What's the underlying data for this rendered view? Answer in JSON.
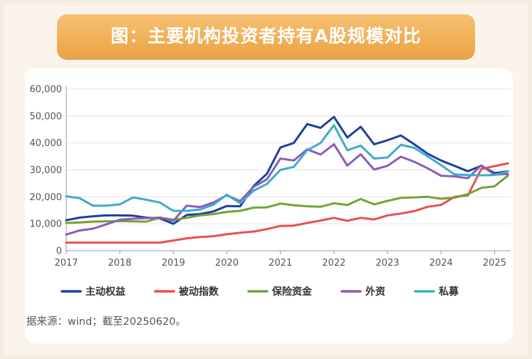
{
  "title": "图：主要机构投资者持有A股规模对比",
  "source": "据来源：wind；截至20250620。",
  "chart_data": {
    "type": "line",
    "ylim": [
      0,
      60000
    ],
    "xlim": [
      2017,
      2025.3
    ],
    "yticks": [
      "0",
      "10,000",
      "20,000",
      "30,000",
      "40,000",
      "50,000",
      "60,000"
    ],
    "xticks": [
      "2017",
      "2018",
      "2019",
      "2020",
      "2021",
      "2022",
      "2023",
      "2024",
      "2025"
    ],
    "grid": "horizontal",
    "legend_position": "bottom",
    "x": [
      2017.0,
      2017.25,
      2017.5,
      2017.75,
      2018.0,
      2018.25,
      2018.5,
      2018.75,
      2019.0,
      2019.25,
      2019.5,
      2019.75,
      2020.0,
      2020.25,
      2020.5,
      2020.75,
      2021.0,
      2021.25,
      2021.5,
      2021.75,
      2022.0,
      2022.25,
      2022.5,
      2022.75,
      2023.0,
      2023.25,
      2023.5,
      2023.75,
      2024.0,
      2024.25,
      2024.5,
      2024.75,
      2025.0,
      2025.25
    ],
    "series": [
      {
        "name": "主动权益",
        "color": "#1f3f9a",
        "values": [
          11300,
          12300,
          12800,
          13100,
          13100,
          13000,
          12300,
          12000,
          10000,
          13300,
          13600,
          14600,
          16600,
          16500,
          24000,
          28600,
          38300,
          40000,
          47000,
          45600,
          49700,
          42000,
          46000,
          39500,
          41000,
          42800,
          39500,
          36000,
          33500,
          31500,
          29500,
          31500,
          28800,
          29400
        ]
      },
      {
        "name": "被动指数",
        "color": "#e7504f",
        "values": [
          3000,
          3000,
          3000,
          3000,
          3000,
          3000,
          3000,
          3000,
          3800,
          4600,
          5100,
          5400,
          6100,
          6700,
          7100,
          8000,
          9200,
          9300,
          10300,
          11200,
          12200,
          11100,
          12200,
          11600,
          13100,
          13800,
          14700,
          16300,
          17000,
          20000,
          20500,
          30300,
          31400,
          32400
        ]
      },
      {
        "name": "保险资金",
        "color": "#73a335",
        "values": [
          10300,
          10500,
          10800,
          10900,
          11000,
          10900,
          10800,
          12300,
          11500,
          12200,
          13100,
          13600,
          14400,
          14800,
          16000,
          16100,
          17500,
          16900,
          16500,
          16300,
          17600,
          17000,
          19200,
          17200,
          18500,
          19600,
          19800,
          20000,
          19300,
          19700,
          21000,
          23300,
          23900,
          27900
        ]
      },
      {
        "name": "外资",
        "color": "#8a5db8",
        "values": [
          6000,
          7500,
          8200,
          9800,
          11500,
          11900,
          12100,
          12300,
          11100,
          16700,
          16200,
          17900,
          20600,
          18400,
          23700,
          26500,
          34200,
          33500,
          37600,
          35700,
          39500,
          31600,
          35800,
          30100,
          31500,
          34900,
          33000,
          30600,
          27800,
          27600,
          26900,
          31700,
          28200,
          28500
        ]
      },
      {
        "name": "私募",
        "color": "#40aacd",
        "values": [
          20200,
          19500,
          16700,
          16700,
          17200,
          19800,
          18900,
          17900,
          14800,
          14800,
          15300,
          17100,
          20800,
          17600,
          22300,
          24800,
          30000,
          31100,
          37300,
          40000,
          46600,
          37300,
          39000,
          34200,
          34600,
          39300,
          38200,
          35000,
          31800,
          28300,
          28100,
          28000,
          28100,
          29300
        ]
      }
    ]
  }
}
